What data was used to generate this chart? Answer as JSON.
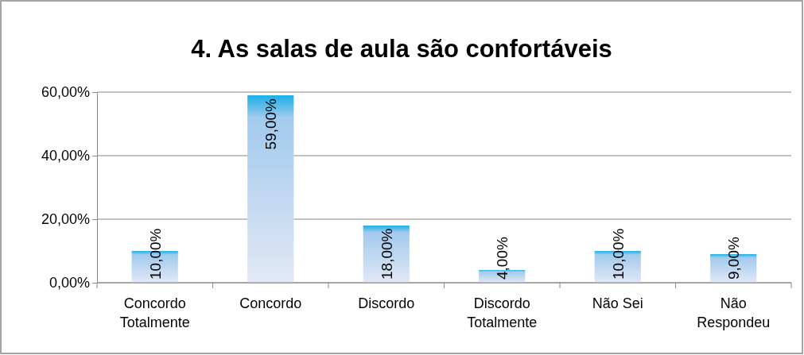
{
  "chart_data": {
    "type": "bar",
    "title": "4. As salas de aula são confortáveis",
    "categories": [
      "Concordo Totalmente",
      "Concordo",
      "Discordo",
      "Discordo Totalmente",
      "Não Sei",
      "Não Respondeu"
    ],
    "values": [
      10,
      59,
      18,
      4,
      10,
      9
    ],
    "value_labels": [
      "10,00%",
      "59,00%",
      "18,00%",
      "4,00%",
      "10,00%",
      "9,00%"
    ],
    "color": "#1ab0e8",
    "ylim": [
      0,
      60
    ],
    "yticks": [
      {
        "value": 0,
        "label": "0,00%"
      },
      {
        "value": 20,
        "label": "20,00%"
      },
      {
        "value": 40,
        "label": "40,00%"
      },
      {
        "value": 60,
        "label": "60,00%"
      }
    ],
    "grid": "y"
  }
}
